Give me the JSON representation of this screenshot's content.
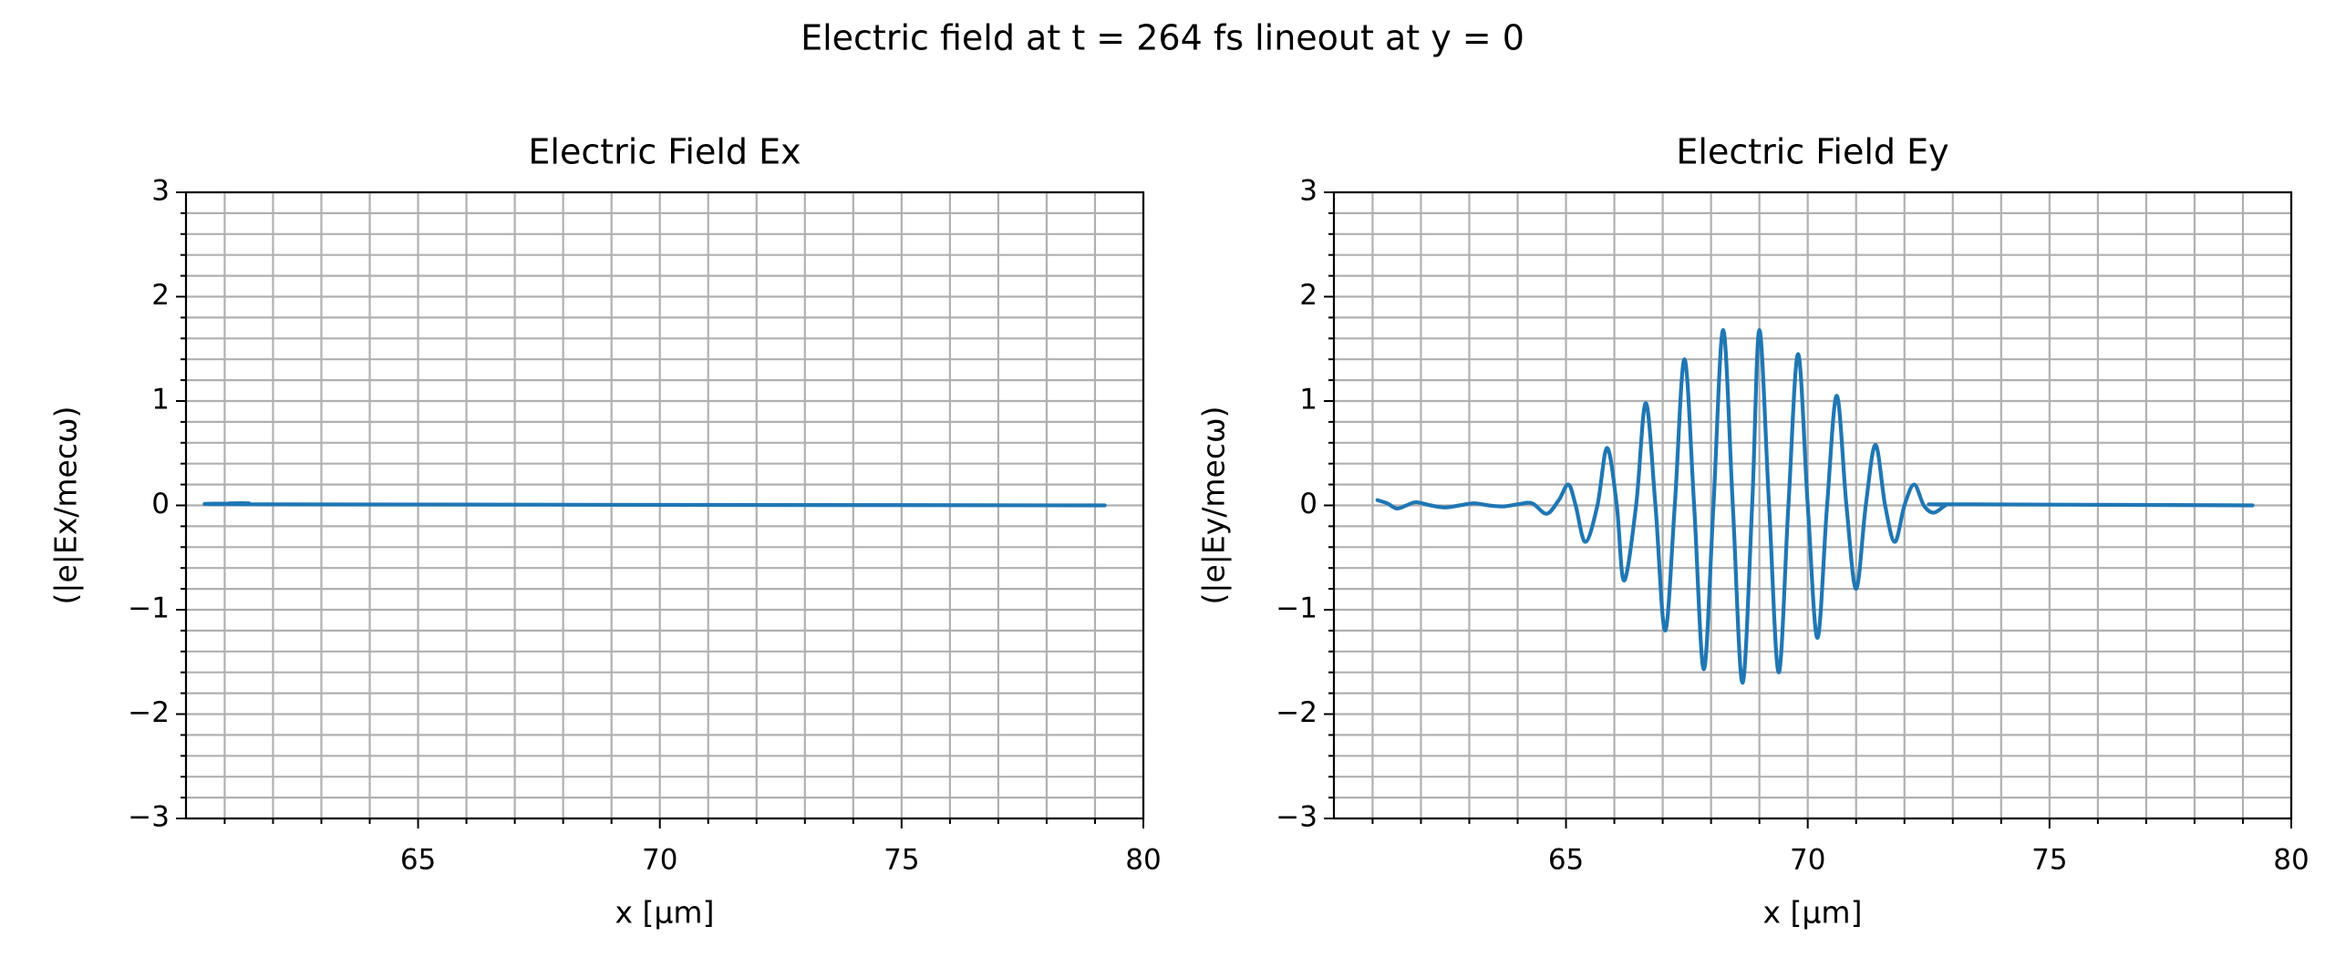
{
  "title": "Electric field at t = 264 fs lineout at y = 0",
  "chart_data": [
    {
      "type": "line",
      "title": "Electric Field Ex",
      "xlabel": "x [µm]",
      "ylabel": "(|e|Ex/mecω)",
      "x": [
        61.1,
        61.5,
        62.0,
        79.2
      ],
      "series": [
        {
          "color": "#1f77b4",
          "values": [
            0.02,
            0.02,
            0.01,
            0.0
          ]
        }
      ],
      "xlim": [
        60.2,
        80
      ],
      "ylim": [
        -3,
        3
      ],
      "xticks": [
        65,
        70,
        75,
        80
      ],
      "yticks": [
        {
          "value": -3,
          "label": "−3"
        },
        {
          "value": -2,
          "label": "−2"
        },
        {
          "value": -1,
          "label": "−1"
        },
        0,
        1,
        2,
        3
      ],
      "xminorticks": [
        61,
        62,
        63,
        64,
        66,
        67,
        68,
        69,
        71,
        72,
        73,
        74,
        76,
        77,
        78,
        79
      ],
      "yminorticks": [
        -2.8,
        -2.6,
        -2.4,
        -2.2,
        -1.8,
        -1.6,
        -1.4,
        -1.2,
        -0.8,
        -0.6,
        -0.4,
        -0.2,
        0.2,
        0.4,
        0.6,
        0.8,
        1.2,
        1.4,
        1.6,
        1.8,
        2.2,
        2.4,
        2.6,
        2.8
      ],
      "grid": true
    },
    {
      "type": "line",
      "title": "Electric Field Ey",
      "xlabel": "x [µm]",
      "ylabel": "(|e|Ey/mecω)",
      "x": [
        61.1,
        61.3,
        61.5,
        61.7,
        61.9,
        62.2,
        62.5,
        62.8,
        63.1,
        63.4,
        63.7,
        64.0,
        64.3,
        64.6,
        64.85,
        65.05,
        65.2,
        65.4,
        65.65,
        65.85,
        66.05,
        66.2,
        66.45,
        66.65,
        66.85,
        67.05,
        67.25,
        67.45,
        67.65,
        67.85,
        68.05,
        68.25,
        68.45,
        68.65,
        68.85,
        69.0,
        69.2,
        69.4,
        69.6,
        69.8,
        70.0,
        70.2,
        70.4,
        70.6,
        70.8,
        71.0,
        71.2,
        71.4,
        71.6,
        71.8,
        72.0,
        72.2,
        72.4,
        72.6,
        72.85,
        73.0,
        79.2
      ],
      "series": [
        {
          "color": "#1f77b4",
          "values": [
            0.05,
            0.02,
            -0.03,
            0.0,
            0.03,
            0.0,
            -0.02,
            0.0,
            0.02,
            0.0,
            -0.01,
            0.01,
            0.02,
            -0.08,
            0.05,
            0.2,
            0.0,
            -0.35,
            0.0,
            0.55,
            0.0,
            -0.72,
            0.0,
            0.98,
            0.0,
            -1.2,
            0.0,
            1.4,
            0.0,
            -1.57,
            0.0,
            1.68,
            0.0,
            -1.7,
            0.0,
            1.68,
            0.0,
            -1.6,
            0.0,
            1.45,
            0.0,
            -1.27,
            0.0,
            1.05,
            0.0,
            -0.8,
            0.0,
            0.58,
            0.0,
            -0.35,
            0.0,
            0.2,
            0.0,
            -0.07,
            0.0,
            0.01,
            0.0
          ]
        }
      ],
      "xlim": [
        60.2,
        80
      ],
      "ylim": [
        -3,
        3
      ],
      "xticks": [
        65,
        70,
        75,
        80
      ],
      "yticks": [
        {
          "value": -3,
          "label": "−3"
        },
        {
          "value": -2,
          "label": "−2"
        },
        {
          "value": -1,
          "label": "−1"
        },
        0,
        1,
        2,
        3
      ],
      "xminorticks": [
        61,
        62,
        63,
        64,
        66,
        67,
        68,
        69,
        71,
        72,
        73,
        74,
        76,
        77,
        78,
        79
      ],
      "yminorticks": [
        -2.8,
        -2.6,
        -2.4,
        -2.2,
        -1.8,
        -1.6,
        -1.4,
        -1.2,
        -0.8,
        -0.6,
        -0.4,
        -0.2,
        0.2,
        0.4,
        0.6,
        0.8,
        1.2,
        1.4,
        1.6,
        1.8,
        2.2,
        2.4,
        2.6,
        2.8
      ],
      "grid": true
    }
  ]
}
